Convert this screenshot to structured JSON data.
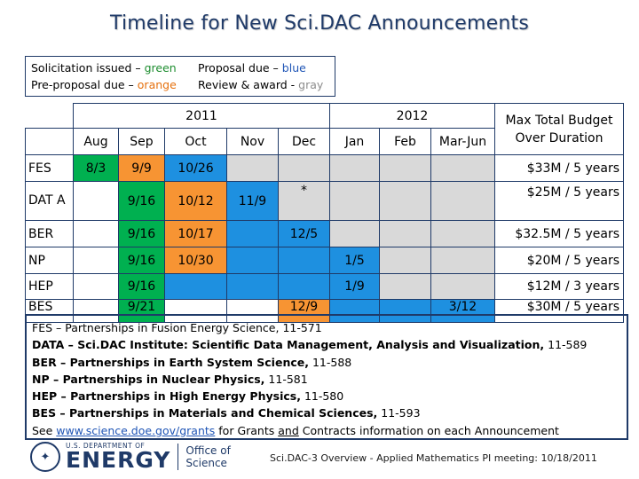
{
  "title": "Timeline for New Sci.DAC Announcements",
  "legend": {
    "solicitation_label": "Solicitation issued – ",
    "solicitation_color": "green",
    "proposal_label": "Proposal due – ",
    "proposal_color": "blue",
    "preproposal_label": "Pre-proposal due – ",
    "preproposal_color": "orange",
    "review_label": "Review & award - ",
    "review_color": "gray"
  },
  "colors": {
    "green": "#00b050",
    "orange": "#f79433",
    "blue": "#1e90e0",
    "gray": "#d9d9d9"
  },
  "table": {
    "year_2011": "2011",
    "year_2012": "2012",
    "budget_header": "Max Total Budget Over Duration",
    "months": [
      "Aug",
      "Sep",
      "Oct",
      "Nov",
      "Dec",
      "Jan",
      "Feb",
      "Mar-Jun"
    ],
    "rows": [
      {
        "label": "FES",
        "cells": [
          "8/3",
          "9/9",
          "10/26",
          "",
          "",
          "",
          "",
          ""
        ],
        "budget": "$33M / 5 years"
      },
      {
        "label": "DAT A",
        "cells": [
          "",
          "9/16",
          "10/12",
          "11/9",
          "*",
          "",
          "",
          ""
        ],
        "budget": "$25M / 5 years"
      },
      {
        "label": "BER",
        "cells": [
          "",
          "9/16",
          "10/17",
          "",
          "12/5",
          "",
          "",
          ""
        ],
        "budget": "$32.5M / 5 years"
      },
      {
        "label": "NP",
        "cells": [
          "",
          "9/16",
          "10/30",
          "",
          "",
          "1/5",
          "",
          ""
        ],
        "budget": "$20M / 5 years"
      },
      {
        "label": "HEP",
        "cells": [
          "",
          "9/16",
          "",
          "",
          "",
          "1/9",
          "",
          ""
        ],
        "budget": "$12M / 3 years"
      },
      {
        "label": "BES",
        "cells": [
          "",
          "9/21",
          "",
          "",
          "12/9",
          "",
          "",
          "3/12"
        ],
        "budget": "$30M / 5 years"
      }
    ]
  },
  "notes": {
    "fes": "FES – Partnerships in Fusion Energy Science, 11-571",
    "data_bold": "DATA – Sci.DAC Institute: Scientific Data Management, Analysis and Visualization,",
    "data_num": " 11-589",
    "ber_bold": "BER – Partnerships in Earth System Science,",
    "ber_num": " 11-588",
    "np_bold": "NP – Partnerships in Nuclear Physics,",
    "np_num": " 11-581",
    "hep_bold": "HEP – Partnerships in High Energy Physics,",
    "hep_num": " 11-580",
    "bes_bold": "BES – Partnerships in Materials and Chemical Sciences,",
    "bes_num": " 11-593",
    "see_pre": "See ",
    "see_link": "www.science.doe.gov/grants",
    "see_mid": " for Grants ",
    "see_and": "and",
    "see_post": " Contracts information on each Announcement"
  },
  "footer": {
    "doe_small": "U.S. DEPARTMENT OF",
    "doe_big": "ENERGY",
    "office_line1": "Office of",
    "office_line2": "Science",
    "caption": "Sci.DAC-3 Overview - Applied Mathematics PI meeting: 10/18/2011"
  }
}
